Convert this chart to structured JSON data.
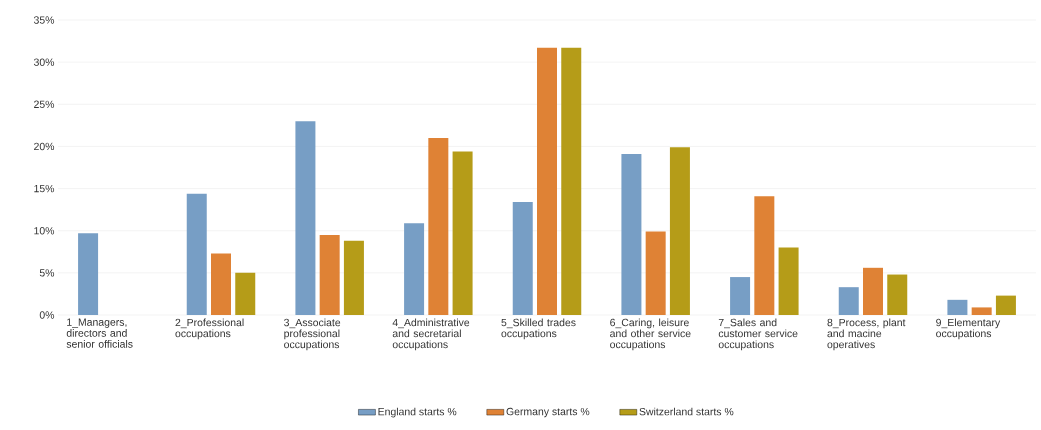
{
  "chart_data": {
    "type": "bar",
    "categories": [
      "1_Managers, directors and senior officials",
      "2_Professional occupations",
      "3_Associate professional occupations",
      "4_Administrative and secretarial occupations",
      "5_Skilled trades occupations",
      "6_Caring, leisure and other service occupations",
      "7_Sales and customer service occupations",
      "8_Process, plant and macine operatives",
      "9_Elementary occupations"
    ],
    "series": [
      {
        "name": "England starts %",
        "color": "#779ec5",
        "values": [
          9.7,
          14.4,
          23.0,
          10.9,
          13.4,
          19.1,
          4.5,
          3.3,
          1.8
        ]
      },
      {
        "name": "Germany starts %",
        "color": "#df8235",
        "values": [
          null,
          7.3,
          9.5,
          21.0,
          31.7,
          9.9,
          14.1,
          5.6,
          0.9
        ]
      },
      {
        "name": "Switzerland starts %",
        "color": "#b59c18",
        "values": [
          null,
          5.0,
          8.8,
          19.4,
          31.7,
          19.9,
          8.0,
          4.8,
          2.3
        ]
      }
    ],
    "ylim": [
      0,
      35
    ],
    "yticks": [
      {
        "value": 0,
        "label": "0%"
      },
      {
        "value": 5,
        "label": "5%"
      },
      {
        "value": 10,
        "label": "10%"
      },
      {
        "value": 15,
        "label": "15%"
      },
      {
        "value": 20,
        "label": "20%"
      },
      {
        "value": 25,
        "label": "25%"
      },
      {
        "value": 30,
        "label": "30%"
      },
      {
        "value": 35,
        "label": "35%"
      }
    ],
    "grid": "y",
    "legend": "bottom"
  }
}
